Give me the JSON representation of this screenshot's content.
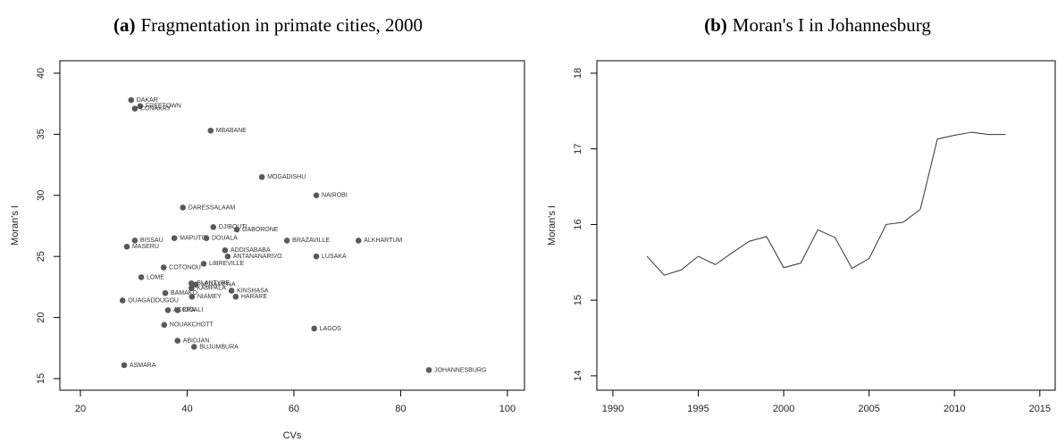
{
  "chart_data": [
    {
      "type": "scatter",
      "panel_label": "(a)",
      "title": "Fragmentation in primate cities, 2000",
      "xlabel": "CVs",
      "ylabel": "Moran's I",
      "color": "#595959",
      "xlim": [
        16.15,
        103.2
      ],
      "ylim": [
        14.05,
        41.02
      ],
      "xticks": [
        20,
        40,
        60,
        80,
        100
      ],
      "yticks": [
        15,
        20,
        25,
        30,
        35,
        40
      ],
      "labels": [
        "DAKAR",
        "FREETOWN",
        "CONAKRY",
        "MBABANE",
        "MOGADISHU",
        "NAIROBI",
        "DARESSALAAM",
        "DJIBOUTI",
        "GABORONE",
        "BISSAU",
        "MAPUTO",
        "DOUALA",
        "BRAZAVILLE",
        "ALKHARTUM",
        "MASERU",
        "ADDISABABA",
        "ANTANANARIVO",
        "LUSAKA",
        "LIBREVILLE",
        "COTONOU",
        "LOME",
        "BLANTYRE",
        "NDJAMENA",
        "KAMPALA",
        "BAMAKO",
        "KINSHASA",
        "NIAMEY",
        "HARARE",
        "OUAGADOUGOU",
        "ACCRA",
        "KIGALI",
        "NOUAKCHOTT",
        "LAGOS",
        "ABIDJAN",
        "BUJUMBURA",
        "ASMARA",
        "JOHANNESBURG"
      ],
      "x": [
        29.5,
        31.2,
        30.2,
        44.4,
        54.0,
        64.2,
        39.2,
        44.9,
        49.3,
        30.2,
        37.6,
        43.6,
        58.7,
        72.1,
        28.7,
        47.1,
        47.6,
        64.2,
        43.1,
        35.6,
        31.4,
        40.8,
        41.6,
        40.8,
        35.9,
        48.3,
        40.9,
        49.1,
        27.9,
        36.4,
        38.2,
        35.7,
        63.8,
        38.2,
        41.3,
        28.2,
        85.3
      ],
      "values": [
        37.8,
        37.3,
        37.1,
        35.3,
        31.5,
        30.0,
        29.0,
        27.4,
        27.2,
        26.3,
        26.5,
        26.5,
        26.3,
        26.3,
        25.8,
        25.5,
        25.0,
        25.0,
        24.4,
        24.1,
        23.3,
        22.8,
        22.7,
        22.4,
        22.0,
        22.2,
        21.7,
        21.7,
        21.4,
        20.6,
        20.6,
        19.4,
        19.1,
        18.1,
        17.6,
        16.1,
        15.7
      ]
    },
    {
      "type": "line",
      "panel_label": "(b)",
      "title": "Moran's I in Johannesburg",
      "ylabel": "Moran's I",
      "color": "#333333",
      "xlim": [
        1989.06,
        2015.9
      ],
      "ylim": [
        13.81,
        18.165
      ],
      "xticks": [
        1990,
        1995,
        2000,
        2005,
        2010,
        2015
      ],
      "yticks": [
        14,
        15,
        16,
        17,
        18
      ],
      "x": [
        1992,
        1993,
        1994,
        1995,
        1996,
        1997,
        1998,
        1999,
        2000,
        2001,
        2002,
        2003,
        2004,
        2005,
        2006,
        2007,
        2008,
        2009,
        2010,
        2011,
        2012,
        2013
      ],
      "values": [
        15.58,
        15.33,
        15.4,
        15.58,
        15.47,
        15.63,
        15.78,
        15.84,
        15.43,
        15.49,
        15.93,
        15.83,
        15.42,
        15.55,
        16.0,
        16.03,
        16.2,
        17.13,
        17.18,
        17.22,
        17.19,
        17.19
      ]
    }
  ]
}
